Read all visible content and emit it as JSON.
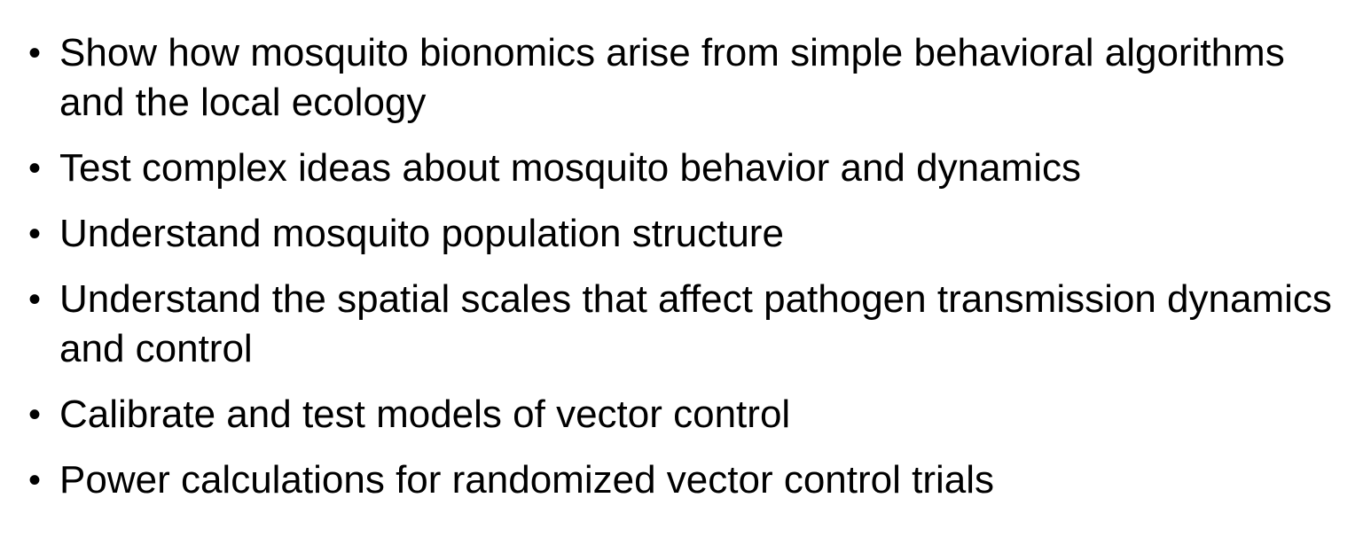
{
  "bullets": [
    {
      "marker": "•",
      "text": "Show how mosquito bionomics arise from simple behavioral algorithms and the local ecology"
    },
    {
      "marker": "•",
      "text": "Test complex ideas about mosquito behavior and dynamics"
    },
    {
      "marker": "•",
      "text": "Understand mosquito population structure"
    },
    {
      "marker": "•",
      "text": "Understand the spatial scales that affect pathogen transmission dynamics and control"
    },
    {
      "marker": "•",
      "text": "Calibrate and test models of vector control"
    },
    {
      "marker": "•",
      "text": "Power calculations for randomized vector control trials"
    }
  ]
}
